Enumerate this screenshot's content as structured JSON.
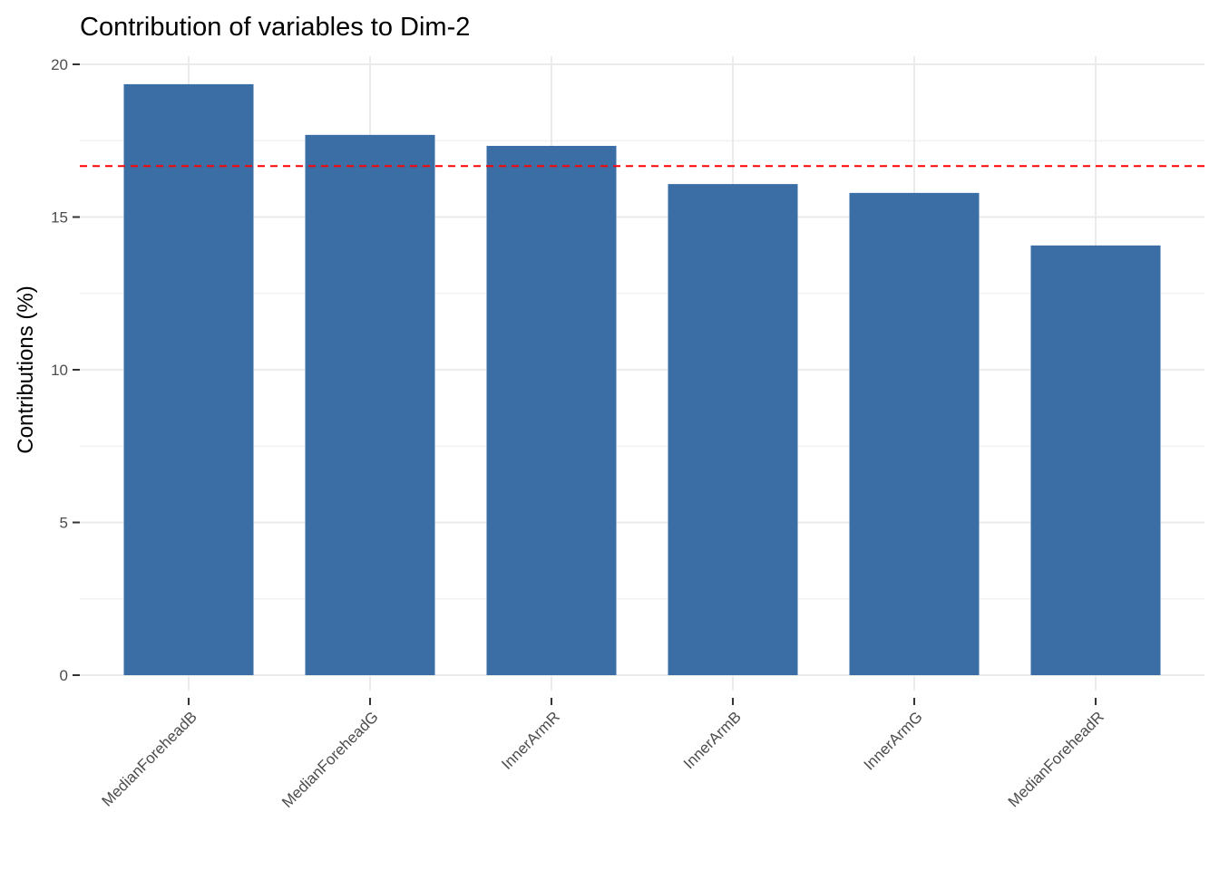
{
  "chart_data": {
    "type": "bar",
    "title": "Contribution of variables to Dim-2",
    "xlabel": "",
    "ylabel": "Contributions (%)",
    "categories": [
      "MedianForeheadB",
      "MedianForeheadG",
      "InnerArmR",
      "InnerArmB",
      "InnerArmG",
      "MedianForeheadR"
    ],
    "values": [
      19.35,
      17.69,
      17.33,
      16.08,
      15.79,
      14.07
    ],
    "reference_line": {
      "value": 16.67,
      "color": "#FF0000",
      "style": "dashed"
    },
    "yticks": [
      "0",
      "5",
      "10",
      "15",
      "20"
    ],
    "ylim": [
      0,
      20
    ],
    "grid": true,
    "bar_color": "#3A6EA5"
  }
}
